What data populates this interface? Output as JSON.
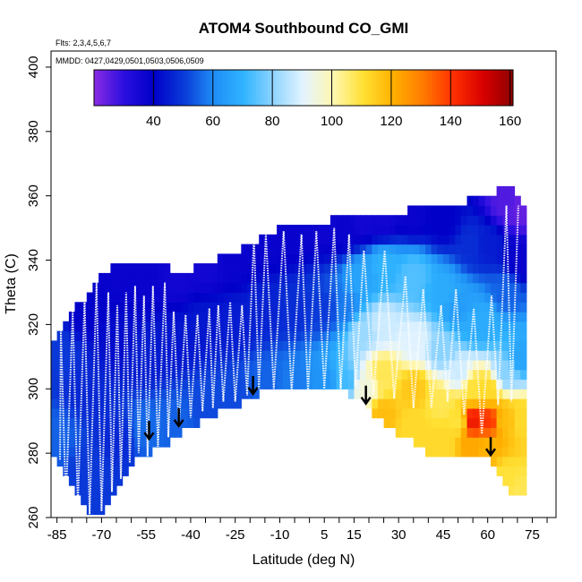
{
  "chart_data": {
    "type": "heatmap",
    "title": "ATOM4 Southbound CO_GMI",
    "flights_note": "Flts: 2,3,4,5,6,7",
    "dates_note": "MMDD: 0427,0429,0501,0503,0506,0509",
    "xlabel": "Latitude (deg N)",
    "ylabel": "Theta (C)",
    "xlim": [
      -87,
      83
    ],
    "ylim": [
      260,
      405
    ],
    "x_ticks": [
      -85,
      -70,
      -55,
      -40,
      -25,
      -10,
      5,
      15,
      30,
      45,
      60,
      75
    ],
    "y_ticks": [
      260,
      280,
      300,
      320,
      340,
      360,
      380,
      400
    ],
    "colorbar": {
      "range": [
        20,
        161
      ],
      "ticks": [
        40,
        60,
        80,
        100,
        120,
        140,
        160
      ],
      "colors": [
        "#8a2be2",
        "#2b0fe0",
        "#0000c8",
        "#0a3ad8",
        "#1e8ef5",
        "#30b4ff",
        "#8fd4ff",
        "#e4f4ff",
        "#fff7b0",
        "#ffe033",
        "#ffb000",
        "#ff7a00",
        "#ff3000",
        "#d80000",
        "#8e0000"
      ]
    },
    "theta_columns": [
      {
        "lat": -85,
        "bottom": 278,
        "top": 314
      },
      {
        "lat": -82,
        "bottom": 272,
        "top": 322
      },
      {
        "lat": -78,
        "bottom": 268,
        "top": 326
      },
      {
        "lat": -74,
        "bottom": 262,
        "top": 330
      },
      {
        "lat": -70,
        "bottom": 261,
        "top": 336
      },
      {
        "lat": -65,
        "bottom": 268,
        "top": 338
      },
      {
        "lat": -60,
        "bottom": 276,
        "top": 338
      },
      {
        "lat": -55,
        "bottom": 280,
        "top": 340
      },
      {
        "lat": -50,
        "bottom": 282,
        "top": 338
      },
      {
        "lat": -45,
        "bottom": 285,
        "top": 337
      },
      {
        "lat": -40,
        "bottom": 288,
        "top": 337
      },
      {
        "lat": -35,
        "bottom": 291,
        "top": 339
      },
      {
        "lat": -30,
        "bottom": 293,
        "top": 341
      },
      {
        "lat": -25,
        "bottom": 295,
        "top": 343
      },
      {
        "lat": -20,
        "bottom": 297,
        "top": 345
      },
      {
        "lat": -15,
        "bottom": 299,
        "top": 347
      },
      {
        "lat": -10,
        "bottom": 301,
        "top": 351
      },
      {
        "lat": -5,
        "bottom": 300,
        "top": 350
      },
      {
        "lat": 0,
        "bottom": 299,
        "top": 350
      },
      {
        "lat": 5,
        "bottom": 299,
        "top": 352
      },
      {
        "lat": 10,
        "bottom": 300,
        "top": 353
      },
      {
        "lat": 15,
        "bottom": 298,
        "top": 354
      },
      {
        "lat": 20,
        "bottom": 294,
        "top": 354
      },
      {
        "lat": 25,
        "bottom": 290,
        "top": 355
      },
      {
        "lat": 30,
        "bottom": 286,
        "top": 355
      },
      {
        "lat": 35,
        "bottom": 283,
        "top": 356
      },
      {
        "lat": 40,
        "bottom": 280,
        "top": 356
      },
      {
        "lat": 45,
        "bottom": 278,
        "top": 358
      },
      {
        "lat": 50,
        "bottom": 278,
        "top": 358
      },
      {
        "lat": 55,
        "bottom": 279,
        "top": 359
      },
      {
        "lat": 60,
        "bottom": 278,
        "top": 361
      },
      {
        "lat": 65,
        "bottom": 273,
        "top": 362
      },
      {
        "lat": 69,
        "bottom": 266,
        "top": 362
      },
      {
        "lat": 71,
        "bottom": 266,
        "top": 356
      }
    ],
    "co_field_points": [
      {
        "lat": -85,
        "theta": 285,
        "co": 55
      },
      {
        "lat": -85,
        "theta": 310,
        "co": 50
      },
      {
        "lat": -75,
        "theta": 275,
        "co": 50
      },
      {
        "lat": -75,
        "theta": 300,
        "co": 47
      },
      {
        "lat": -75,
        "theta": 325,
        "co": 40
      },
      {
        "lat": -65,
        "theta": 285,
        "co": 47
      },
      {
        "lat": -65,
        "theta": 315,
        "co": 42
      },
      {
        "lat": -65,
        "theta": 335,
        "co": 38
      },
      {
        "lat": -55,
        "theta": 288,
        "co": 56
      },
      {
        "lat": -55,
        "theta": 310,
        "co": 45
      },
      {
        "lat": -55,
        "theta": 335,
        "co": 38
      },
      {
        "lat": -45,
        "theta": 290,
        "co": 55
      },
      {
        "lat": -45,
        "theta": 315,
        "co": 44
      },
      {
        "lat": -45,
        "theta": 335,
        "co": 36
      },
      {
        "lat": -35,
        "theta": 295,
        "co": 52
      },
      {
        "lat": -35,
        "theta": 320,
        "co": 44
      },
      {
        "lat": -35,
        "theta": 338,
        "co": 36
      },
      {
        "lat": -25,
        "theta": 298,
        "co": 52
      },
      {
        "lat": -25,
        "theta": 320,
        "co": 45
      },
      {
        "lat": -25,
        "theta": 340,
        "co": 38
      },
      {
        "lat": -15,
        "theta": 302,
        "co": 55
      },
      {
        "lat": -15,
        "theta": 325,
        "co": 46
      },
      {
        "lat": -15,
        "theta": 345,
        "co": 38
      },
      {
        "lat": -5,
        "theta": 302,
        "co": 58
      },
      {
        "lat": -5,
        "theta": 325,
        "co": 48
      },
      {
        "lat": -5,
        "theta": 348,
        "co": 38
      },
      {
        "lat": 5,
        "theta": 302,
        "co": 62
      },
      {
        "lat": 5,
        "theta": 325,
        "co": 50
      },
      {
        "lat": 5,
        "theta": 350,
        "co": 37
      },
      {
        "lat": 12,
        "theta": 302,
        "co": 72
      },
      {
        "lat": 12,
        "theta": 325,
        "co": 58
      },
      {
        "lat": 12,
        "theta": 350,
        "co": 38
      },
      {
        "lat": 18,
        "theta": 300,
        "co": 95
      },
      {
        "lat": 18,
        "theta": 318,
        "co": 82
      },
      {
        "lat": 18,
        "theta": 335,
        "co": 66
      },
      {
        "lat": 18,
        "theta": 352,
        "co": 36
      },
      {
        "lat": 25,
        "theta": 292,
        "co": 118
      },
      {
        "lat": 25,
        "theta": 305,
        "co": 108
      },
      {
        "lat": 25,
        "theta": 320,
        "co": 88
      },
      {
        "lat": 25,
        "theta": 338,
        "co": 70
      },
      {
        "lat": 25,
        "theta": 353,
        "co": 36
      },
      {
        "lat": 35,
        "theta": 288,
        "co": 112
      },
      {
        "lat": 35,
        "theta": 300,
        "co": 116
      },
      {
        "lat": 35,
        "theta": 315,
        "co": 90
      },
      {
        "lat": 35,
        "theta": 335,
        "co": 74
      },
      {
        "lat": 35,
        "theta": 354,
        "co": 38
      },
      {
        "lat": 45,
        "theta": 282,
        "co": 112
      },
      {
        "lat": 45,
        "theta": 296,
        "co": 108
      },
      {
        "lat": 45,
        "theta": 312,
        "co": 80
      },
      {
        "lat": 45,
        "theta": 330,
        "co": 68
      },
      {
        "lat": 45,
        "theta": 352,
        "co": 40
      },
      {
        "lat": 50,
        "theta": 290,
        "co": 110
      },
      {
        "lat": 50,
        "theta": 305,
        "co": 88
      },
      {
        "lat": 50,
        "theta": 325,
        "co": 64
      },
      {
        "lat": 55,
        "theta": 282,
        "co": 122
      },
      {
        "lat": 55,
        "theta": 290,
        "co": 145
      },
      {
        "lat": 55,
        "theta": 300,
        "co": 110
      },
      {
        "lat": 55,
        "theta": 320,
        "co": 68
      },
      {
        "lat": 55,
        "theta": 345,
        "co": 48
      },
      {
        "lat": 60,
        "theta": 282,
        "co": 120
      },
      {
        "lat": 60,
        "theta": 290,
        "co": 140
      },
      {
        "lat": 60,
        "theta": 300,
        "co": 112
      },
      {
        "lat": 60,
        "theta": 320,
        "co": 68
      },
      {
        "lat": 60,
        "theta": 345,
        "co": 45
      },
      {
        "lat": 66,
        "theta": 272,
        "co": 110
      },
      {
        "lat": 66,
        "theta": 290,
        "co": 118
      },
      {
        "lat": 66,
        "theta": 305,
        "co": 80
      },
      {
        "lat": 66,
        "theta": 330,
        "co": 55
      },
      {
        "lat": 66,
        "theta": 358,
        "co": 26
      },
      {
        "lat": 71,
        "theta": 268,
        "co": 108
      },
      {
        "lat": 71,
        "theta": 290,
        "co": 112
      },
      {
        "lat": 71,
        "theta": 310,
        "co": 66
      },
      {
        "lat": 71,
        "theta": 340,
        "co": 38
      },
      {
        "lat": 71,
        "theta": 356,
        "co": 24
      }
    ],
    "profiles": [
      {
        "lat": -84,
        "bottom": 278,
        "top": 318
      },
      {
        "lat": -80,
        "bottom": 265,
        "top": 324
      },
      {
        "lat": -76,
        "bottom": 264,
        "top": 328
      },
      {
        "lat": -72,
        "bottom": 261,
        "top": 333
      },
      {
        "lat": -68,
        "bottom": 262,
        "top": 330
      },
      {
        "lat": -65,
        "bottom": 268,
        "top": 326
      },
      {
        "lat": -62,
        "bottom": 272,
        "top": 330
      },
      {
        "lat": -59,
        "bottom": 277,
        "top": 332
      },
      {
        "lat": -56,
        "bottom": 280,
        "top": 329
      },
      {
        "lat": -53,
        "bottom": 279,
        "top": 332
      },
      {
        "lat": -49,
        "bottom": 282,
        "top": 333
      },
      {
        "lat": -46,
        "bottom": 285,
        "top": 324
      },
      {
        "lat": -42,
        "bottom": 288,
        "top": 323
      },
      {
        "lat": -38,
        "bottom": 291,
        "top": 323
      },
      {
        "lat": -34,
        "bottom": 293,
        "top": 325
      },
      {
        "lat": -31,
        "bottom": 294,
        "top": 326
      },
      {
        "lat": -27,
        "bottom": 296,
        "top": 327
      },
      {
        "lat": -23,
        "bottom": 296,
        "top": 326
      },
      {
        "lat": -19,
        "bottom": 298,
        "top": 347
      },
      {
        "lat": -15,
        "bottom": 300,
        "top": 348
      },
      {
        "lat": -9,
        "bottom": 300,
        "top": 349
      },
      {
        "lat": -3,
        "bottom": 299,
        "top": 348
      },
      {
        "lat": 2,
        "bottom": 299,
        "top": 349
      },
      {
        "lat": 8,
        "bottom": 300,
        "top": 350
      },
      {
        "lat": 13,
        "bottom": 300,
        "top": 348
      },
      {
        "lat": 18,
        "bottom": 301,
        "top": 343
      },
      {
        "lat": 25,
        "bottom": 298,
        "top": 343
      },
      {
        "lat": 32,
        "bottom": 297,
        "top": 335
      },
      {
        "lat": 38,
        "bottom": 294,
        "top": 331
      },
      {
        "lat": 44,
        "bottom": 294,
        "top": 326
      },
      {
        "lat": 49,
        "bottom": 296,
        "top": 331
      },
      {
        "lat": 55,
        "bottom": 292,
        "top": 325
      },
      {
        "lat": 61,
        "bottom": 286,
        "top": 329
      },
      {
        "lat": 66,
        "bottom": 295,
        "top": 357
      },
      {
        "lat": 70,
        "bottom": 296,
        "top": 357
      }
    ],
    "arrows": [
      {
        "lat": -54,
        "theta": 290
      },
      {
        "lat": -44,
        "theta": 294
      },
      {
        "lat": -19,
        "theta": 304
      },
      {
        "lat": 19,
        "theta": 301
      },
      {
        "lat": 61,
        "theta": 285
      }
    ]
  }
}
